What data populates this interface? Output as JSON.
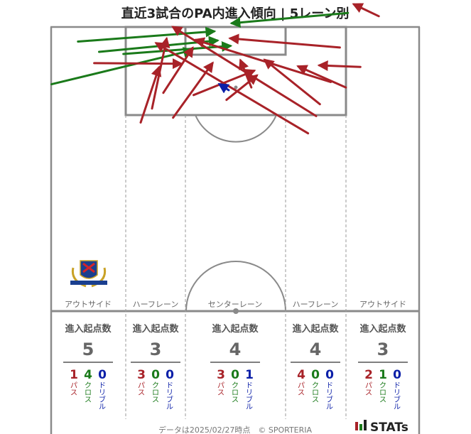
{
  "chart_data": {
    "type": "pitch-arrow-map",
    "title": "直近3試合のPA内進入傾向 | 5レーン別",
    "legend": {
      "pass": {
        "color": "#a82228",
        "label": "パス"
      },
      "cross": {
        "color": "#1a7a1a",
        "label": "クロス"
      },
      "dribble": {
        "color": "#0b1fa8",
        "label": "ドリブル"
      }
    },
    "lanes": [
      {
        "name": "アウトサイド",
        "header": "進入起点数",
        "total": "5",
        "pass": "1",
        "cross": "4",
        "dribble": "0"
      },
      {
        "name": "ハーフレーン",
        "header": "進入起点数",
        "total": "3",
        "pass": "3",
        "cross": "0",
        "dribble": "0"
      },
      {
        "name": "センターレーン",
        "header": "進入起点数",
        "total": "4",
        "pass": "3",
        "cross": "0",
        "dribble": "1"
      },
      {
        "name": "ハーフレーン",
        "header": "進入起点数",
        "total": "4",
        "pass": "4",
        "cross": "0",
        "dribble": "0"
      },
      {
        "name": "アウトサイド",
        "header": "進入起点数",
        "total": "3",
        "pass": "2",
        "cross": "1",
        "dribble": "0"
      }
    ],
    "arrows": [
      {
        "type": "cross",
        "from": [
          -29.1,
          2.7
        ],
        "to": [
          -3.9,
          0.8
        ]
      },
      {
        "type": "cross",
        "from": [
          -25.2,
          4.6
        ],
        "to": [
          -3.3,
          2.5
        ]
      },
      {
        "type": "cross",
        "from": [
          -20.7,
          5.0
        ],
        "to": [
          -0.9,
          3.5
        ]
      },
      {
        "type": "cross",
        "from": [
          -34.0,
          10.6
        ],
        "to": [
          -8.0,
          4.3
        ]
      },
      {
        "type": "cross",
        "from": [
          20.9,
          -2.6
        ],
        "to": [
          -0.6,
          -0.7
        ]
      },
      {
        "type": "pass",
        "from": [
          -26.1,
          6.7
        ],
        "to": [
          -10.0,
          6.8
        ]
      },
      {
        "type": "pass",
        "from": [
          -15.4,
          15.1
        ],
        "to": [
          -12.7,
          2.2
        ]
      },
      {
        "type": "pass",
        "from": [
          -17.5,
          17.7
        ],
        "to": [
          -14.1,
          7.5
        ]
      },
      {
        "type": "pass",
        "from": [
          -13.3,
          12.2
        ],
        "to": [
          -7.9,
          3.9
        ]
      },
      {
        "type": "pass",
        "from": [
          -11.5,
          16.8
        ],
        "to": [
          -4.2,
          6.7
        ]
      },
      {
        "type": "pass",
        "from": [
          -7.7,
          12.6
        ],
        "to": [
          3.5,
          8.1
        ]
      },
      {
        "type": "pass",
        "from": [
          -1.6,
          13.5
        ],
        "to": [
          4.0,
          9.0
        ]
      },
      {
        "type": "pass",
        "from": [
          3.0,
          11.2
        ],
        "to": [
          1.0,
          6.2
        ]
      },
      {
        "type": "pass",
        "from": [
          15.0,
          16.5
        ],
        "to": [
          -11.5,
          0.0
        ]
      },
      {
        "type": "pass",
        "from": [
          13.5,
          19.7
        ],
        "to": [
          -14.6,
          3.0
        ]
      },
      {
        "type": "pass",
        "from": [
          17.7,
          10.2
        ],
        "to": [
          -7.3,
          2.4
        ]
      },
      {
        "type": "pass",
        "from": [
          15.7,
          14.3
        ],
        "to": [
          5.5,
          6.1
        ]
      },
      {
        "type": "pass",
        "from": [
          20.5,
          11.2
        ],
        "to": [
          11.7,
          7.3
        ]
      },
      {
        "type": "pass",
        "from": [
          19.4,
          3.8
        ],
        "to": [
          -0.9,
          2.1
        ]
      },
      {
        "type": "pass",
        "from": [
          23.2,
          7.4
        ],
        "to": [
          15.6,
          7.1
        ]
      },
      {
        "type": "pass",
        "from": [
          26.6,
          -2.0
        ],
        "to": [
          22.0,
          -4.2
        ]
      },
      {
        "type": "dribble",
        "from": [
          -1.2,
          11.7
        ],
        "to": [
          -2.9,
          10.6
        ]
      }
    ],
    "footer": "データは2025/02/27時点　© SPORTERIA",
    "brand": "STATs"
  }
}
